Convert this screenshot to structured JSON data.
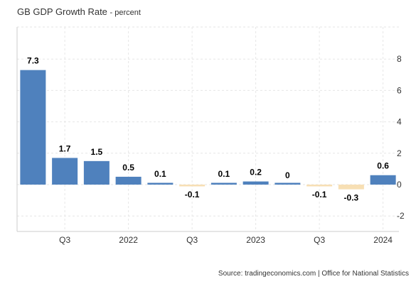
{
  "header": {
    "title": "GB GDP Growth Rate",
    "subtitle": "- percent"
  },
  "source": "Source: tradingeconomics.com | Office for National Statistics",
  "colors": {
    "positive": "#4f81bd",
    "negative": "#f7dfb4",
    "grid": "#e6e6e6",
    "axis": "#cccccc"
  },
  "chart_data": {
    "type": "bar",
    "title": "GB GDP Growth Rate",
    "subtitle": "- percent",
    "xlabel": "",
    "ylabel": "",
    "values": [
      7.3,
      1.7,
      1.5,
      0.5,
      0.1,
      -0.1,
      0.1,
      0.2,
      0,
      -0.1,
      -0.3,
      0.6
    ],
    "data_labels": [
      "7.3",
      "1.7",
      "1.5",
      "0.5",
      "0.1",
      "-0.1",
      "0.1",
      "0.2",
      "0",
      "-0.1",
      "-0.3",
      "0.6"
    ],
    "x_tick_labels": [
      {
        "after_bar": 1,
        "label": "Q3"
      },
      {
        "after_bar": 3,
        "label": "2022"
      },
      {
        "after_bar": 5,
        "label": "Q3"
      },
      {
        "after_bar": 7,
        "label": "2023"
      },
      {
        "after_bar": 9,
        "label": "Q3"
      },
      {
        "after_bar": 11,
        "label": "2024"
      }
    ],
    "y_ticks": [
      -2,
      0,
      2,
      4,
      6,
      8
    ],
    "ylim": [
      -3,
      10
    ],
    "y_axis_side": "right",
    "grid": true,
    "legend": "none"
  }
}
